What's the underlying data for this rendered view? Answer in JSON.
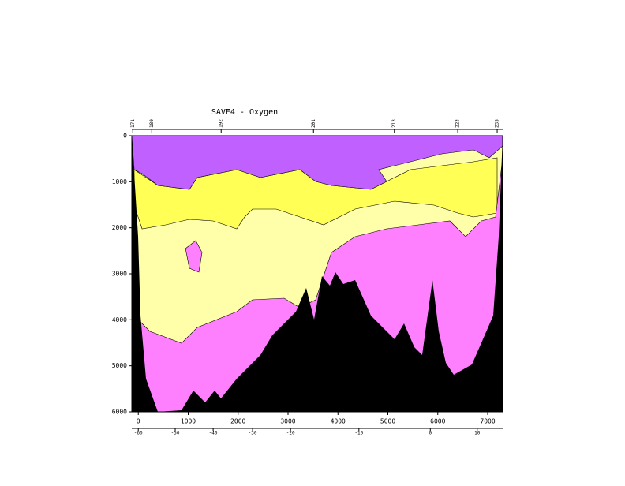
{
  "chart_data": {
    "type": "section",
    "title": "SAVE4 - Oxygen",
    "xlim": [
      -130,
      7300
    ],
    "ylim": [
      0,
      6000
    ],
    "xticks": [
      0,
      1000,
      2000,
      3000,
      4000,
      5000,
      6000,
      7000
    ],
    "yticks": [
      0,
      1000,
      2000,
      3000,
      4000,
      5000,
      6000
    ],
    "lat_axis": {
      "distance": [
        0,
        740,
        1500,
        2290,
        3050,
        4420,
        5850,
        6790
      ],
      "labels": [
        -60,
        -50,
        -40,
        -30,
        -20,
        -10,
        0,
        10
      ]
    },
    "station_axis": {
      "distance": [
        -110,
        270,
        1660,
        3510,
        5130,
        6400,
        7190
      ],
      "labels": [
        171,
        180,
        192,
        201,
        213,
        223,
        235
      ]
    }
  }
}
